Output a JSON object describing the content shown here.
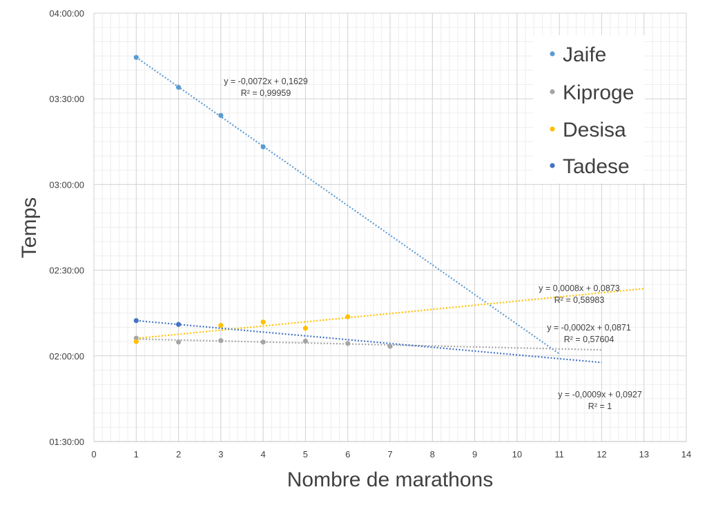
{
  "chart_data": {
    "type": "scatter",
    "xlabel": "Nombre de marathons",
    "ylabel": "Temps",
    "xlim": [
      0,
      14
    ],
    "ylim": [
      "01:30:00",
      "04:00:00"
    ],
    "x_ticks": [
      "0",
      "1",
      "2",
      "3",
      "4",
      "5",
      "6",
      "7",
      "8",
      "9",
      "10",
      "11",
      "12",
      "13",
      "14"
    ],
    "y_ticks": [
      "01:30:00",
      "02:00:00",
      "02:30:00",
      "03:00:00",
      "03:30:00",
      "04:00:00"
    ],
    "grid": true,
    "legend_position": "top-right",
    "series": [
      {
        "name": "Jaife",
        "color": "#5B9BD5",
        "points": [
          [
            1,
            "03:44:30"
          ],
          [
            2,
            "03:34:00"
          ],
          [
            3,
            "03:24:10"
          ],
          [
            4,
            "03:13:10"
          ]
        ],
        "trendline": {
          "x_range": [
            1,
            11
          ],
          "equation": "y = -0,0072x + 0,1629",
          "r2": "R² = 0,99959"
        }
      },
      {
        "name": "Kiproge",
        "color": "#A5A5A5",
        "points": [
          [
            1,
            "02:06:10"
          ],
          [
            2,
            "02:04:50"
          ],
          [
            3,
            "02:05:20"
          ],
          [
            4,
            "02:04:50"
          ],
          [
            5,
            "02:05:10"
          ],
          [
            6,
            "02:04:20"
          ],
          [
            7,
            "02:03:20"
          ]
        ],
        "trendline": {
          "x_range": [
            1,
            12
          ],
          "equation": "y = -0,0002x + 0,0871",
          "r2": "R² = 0,57604"
        }
      },
      {
        "name": "Desisa",
        "color": "#FFC000",
        "points": [
          [
            1,
            "02:05:00"
          ],
          [
            3,
            "02:10:40"
          ],
          [
            4,
            "02:11:50"
          ],
          [
            5,
            "02:09:40"
          ],
          [
            6,
            "02:13:40"
          ]
        ],
        "trendline": {
          "x_range": [
            1,
            13
          ],
          "equation": "y = 0,0008x + 0,0873",
          "r2": "R² = 0,58983"
        }
      },
      {
        "name": "Tadese",
        "color": "#4472C4",
        "points": [
          [
            1,
            "02:12:20"
          ],
          [
            2,
            "02:11:00"
          ]
        ],
        "trendline": {
          "x_range": [
            1,
            12
          ],
          "equation": "y = -0,0009x + 0,0927",
          "r2": "R² = 1"
        }
      }
    ]
  }
}
